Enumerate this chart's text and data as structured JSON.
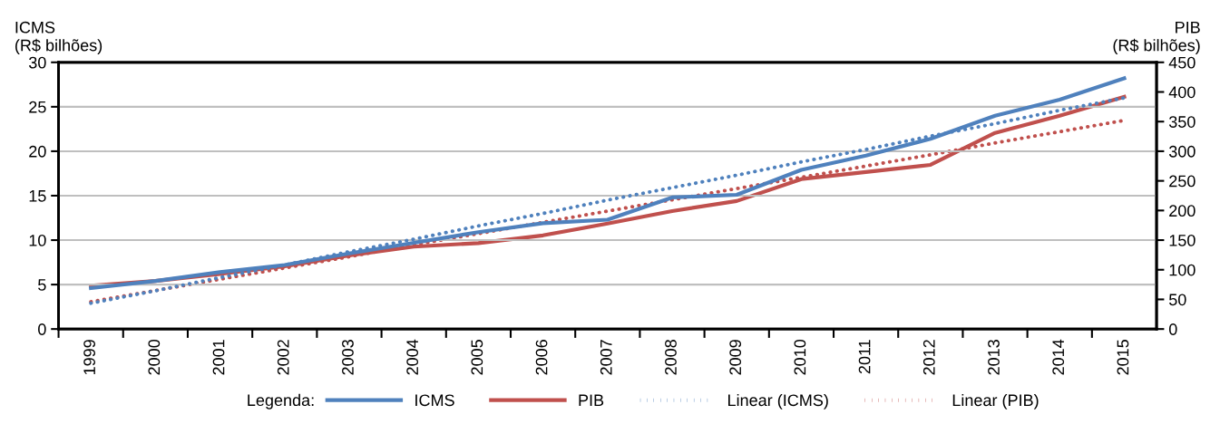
{
  "chart_data": {
    "type": "line",
    "categories": [
      "1999",
      "2000",
      "2001",
      "2002",
      "2003",
      "2004",
      "2005",
      "2006",
      "2007",
      "2008",
      "2009",
      "2010",
      "2011",
      "2012",
      "2013",
      "2014",
      "2015"
    ],
    "ylabel": "ICMS\n(R$ bilhões)",
    "y2label": "PIB\n(R$ bilhões)",
    "series": [
      {
        "name": "ICMS",
        "color": "#4f81bd",
        "line_style": "solid",
        "values": [
          4.6,
          5.4,
          6.4,
          7.2,
          8.5,
          9.7,
          10.9,
          11.9,
          12.3,
          14.8,
          15.1,
          17.9,
          19.5,
          21.4,
          24.0,
          25.8,
          28.2
        ]
      },
      {
        "name": "PIB",
        "color": "#c0504d",
        "line_style": "solid",
        "axis": "y2",
        "values": [
          73,
          81,
          93,
          106,
          124,
          139,
          145,
          158,
          178,
          199,
          216,
          253,
          265,
          277,
          331,
          360,
          392
        ]
      },
      {
        "name": "Linear (ICMS)",
        "color": "#4f81bd",
        "line_style": "dotted",
        "values": [
          2.9,
          4.3,
          5.8,
          7.2,
          8.7,
          10.1,
          11.6,
          13.0,
          14.5,
          15.9,
          17.3,
          18.8,
          20.2,
          21.7,
          23.1,
          24.6,
          26.0
        ]
      },
      {
        "name": "Linear (PIB)",
        "color": "#c0504d",
        "line_style": "dotted",
        "axis": "y2",
        "values": [
          46,
          65,
          84,
          103,
          122,
          142,
          161,
          180,
          199,
          218,
          237,
          256,
          275,
          294,
          314,
          333,
          352
        ]
      }
    ],
    "ylim": [
      0,
      30
    ],
    "yticks": [
      0,
      5,
      10,
      15,
      20,
      25,
      30
    ],
    "y2lim": [
      0,
      450
    ],
    "y2ticks": [
      0,
      50,
      100,
      150,
      200,
      250,
      300,
      350,
      400,
      450
    ],
    "grid": "y",
    "legend": "bottom",
    "legend_title": "Legenda:",
    "marker": "none"
  }
}
